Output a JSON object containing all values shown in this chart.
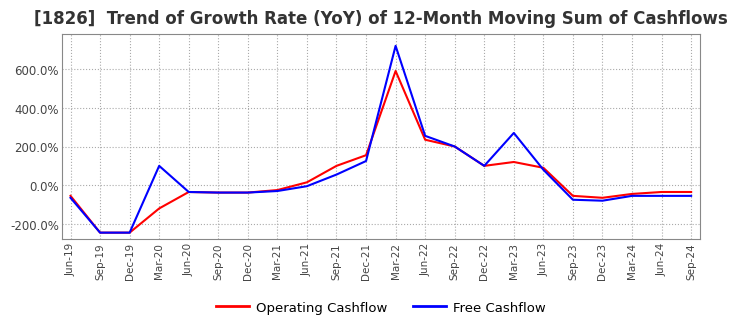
{
  "title": "[1826]  Trend of Growth Rate (YoY) of 12-Month Moving Sum of Cashflows",
  "title_fontsize": 12,
  "ylim": [
    -280,
    780
  ],
  "yticks": [
    -200,
    0,
    200,
    400,
    600
  ],
  "ytick_labels": [
    "-200.0%",
    "0.0%",
    "200.0%",
    "400.0%",
    "600.0%"
  ],
  "background_color": "#ffffff",
  "grid_color": "#aaaaaa",
  "operating_color": "#ff0000",
  "free_color": "#0000ff",
  "dates": [
    "Jun-19",
    "Sep-19",
    "Dec-19",
    "Mar-20",
    "Jun-20",
    "Sep-20",
    "Dec-20",
    "Mar-21",
    "Jun-21",
    "Sep-21",
    "Dec-21",
    "Mar-22",
    "Jun-22",
    "Sep-22",
    "Dec-22",
    "Mar-23",
    "Jun-23",
    "Sep-23",
    "Dec-23",
    "Mar-24",
    "Jun-24",
    "Sep-24"
  ],
  "operating_cashflow": [
    -55,
    -245,
    -245,
    -120,
    -35,
    -38,
    -38,
    -25,
    15,
    100,
    155,
    590,
    235,
    200,
    100,
    120,
    90,
    -55,
    -65,
    -45,
    -35,
    -35
  ],
  "free_cashflow": [
    -65,
    -245,
    -245,
    100,
    -35,
    -38,
    -38,
    -30,
    -5,
    55,
    125,
    720,
    255,
    200,
    100,
    270,
    80,
    -75,
    -80,
    -55,
    -55,
    -55
  ],
  "legend_labels": [
    "Operating Cashflow",
    "Free Cashflow"
  ],
  "legend_colors": [
    "#ff0000",
    "#0000ff"
  ]
}
